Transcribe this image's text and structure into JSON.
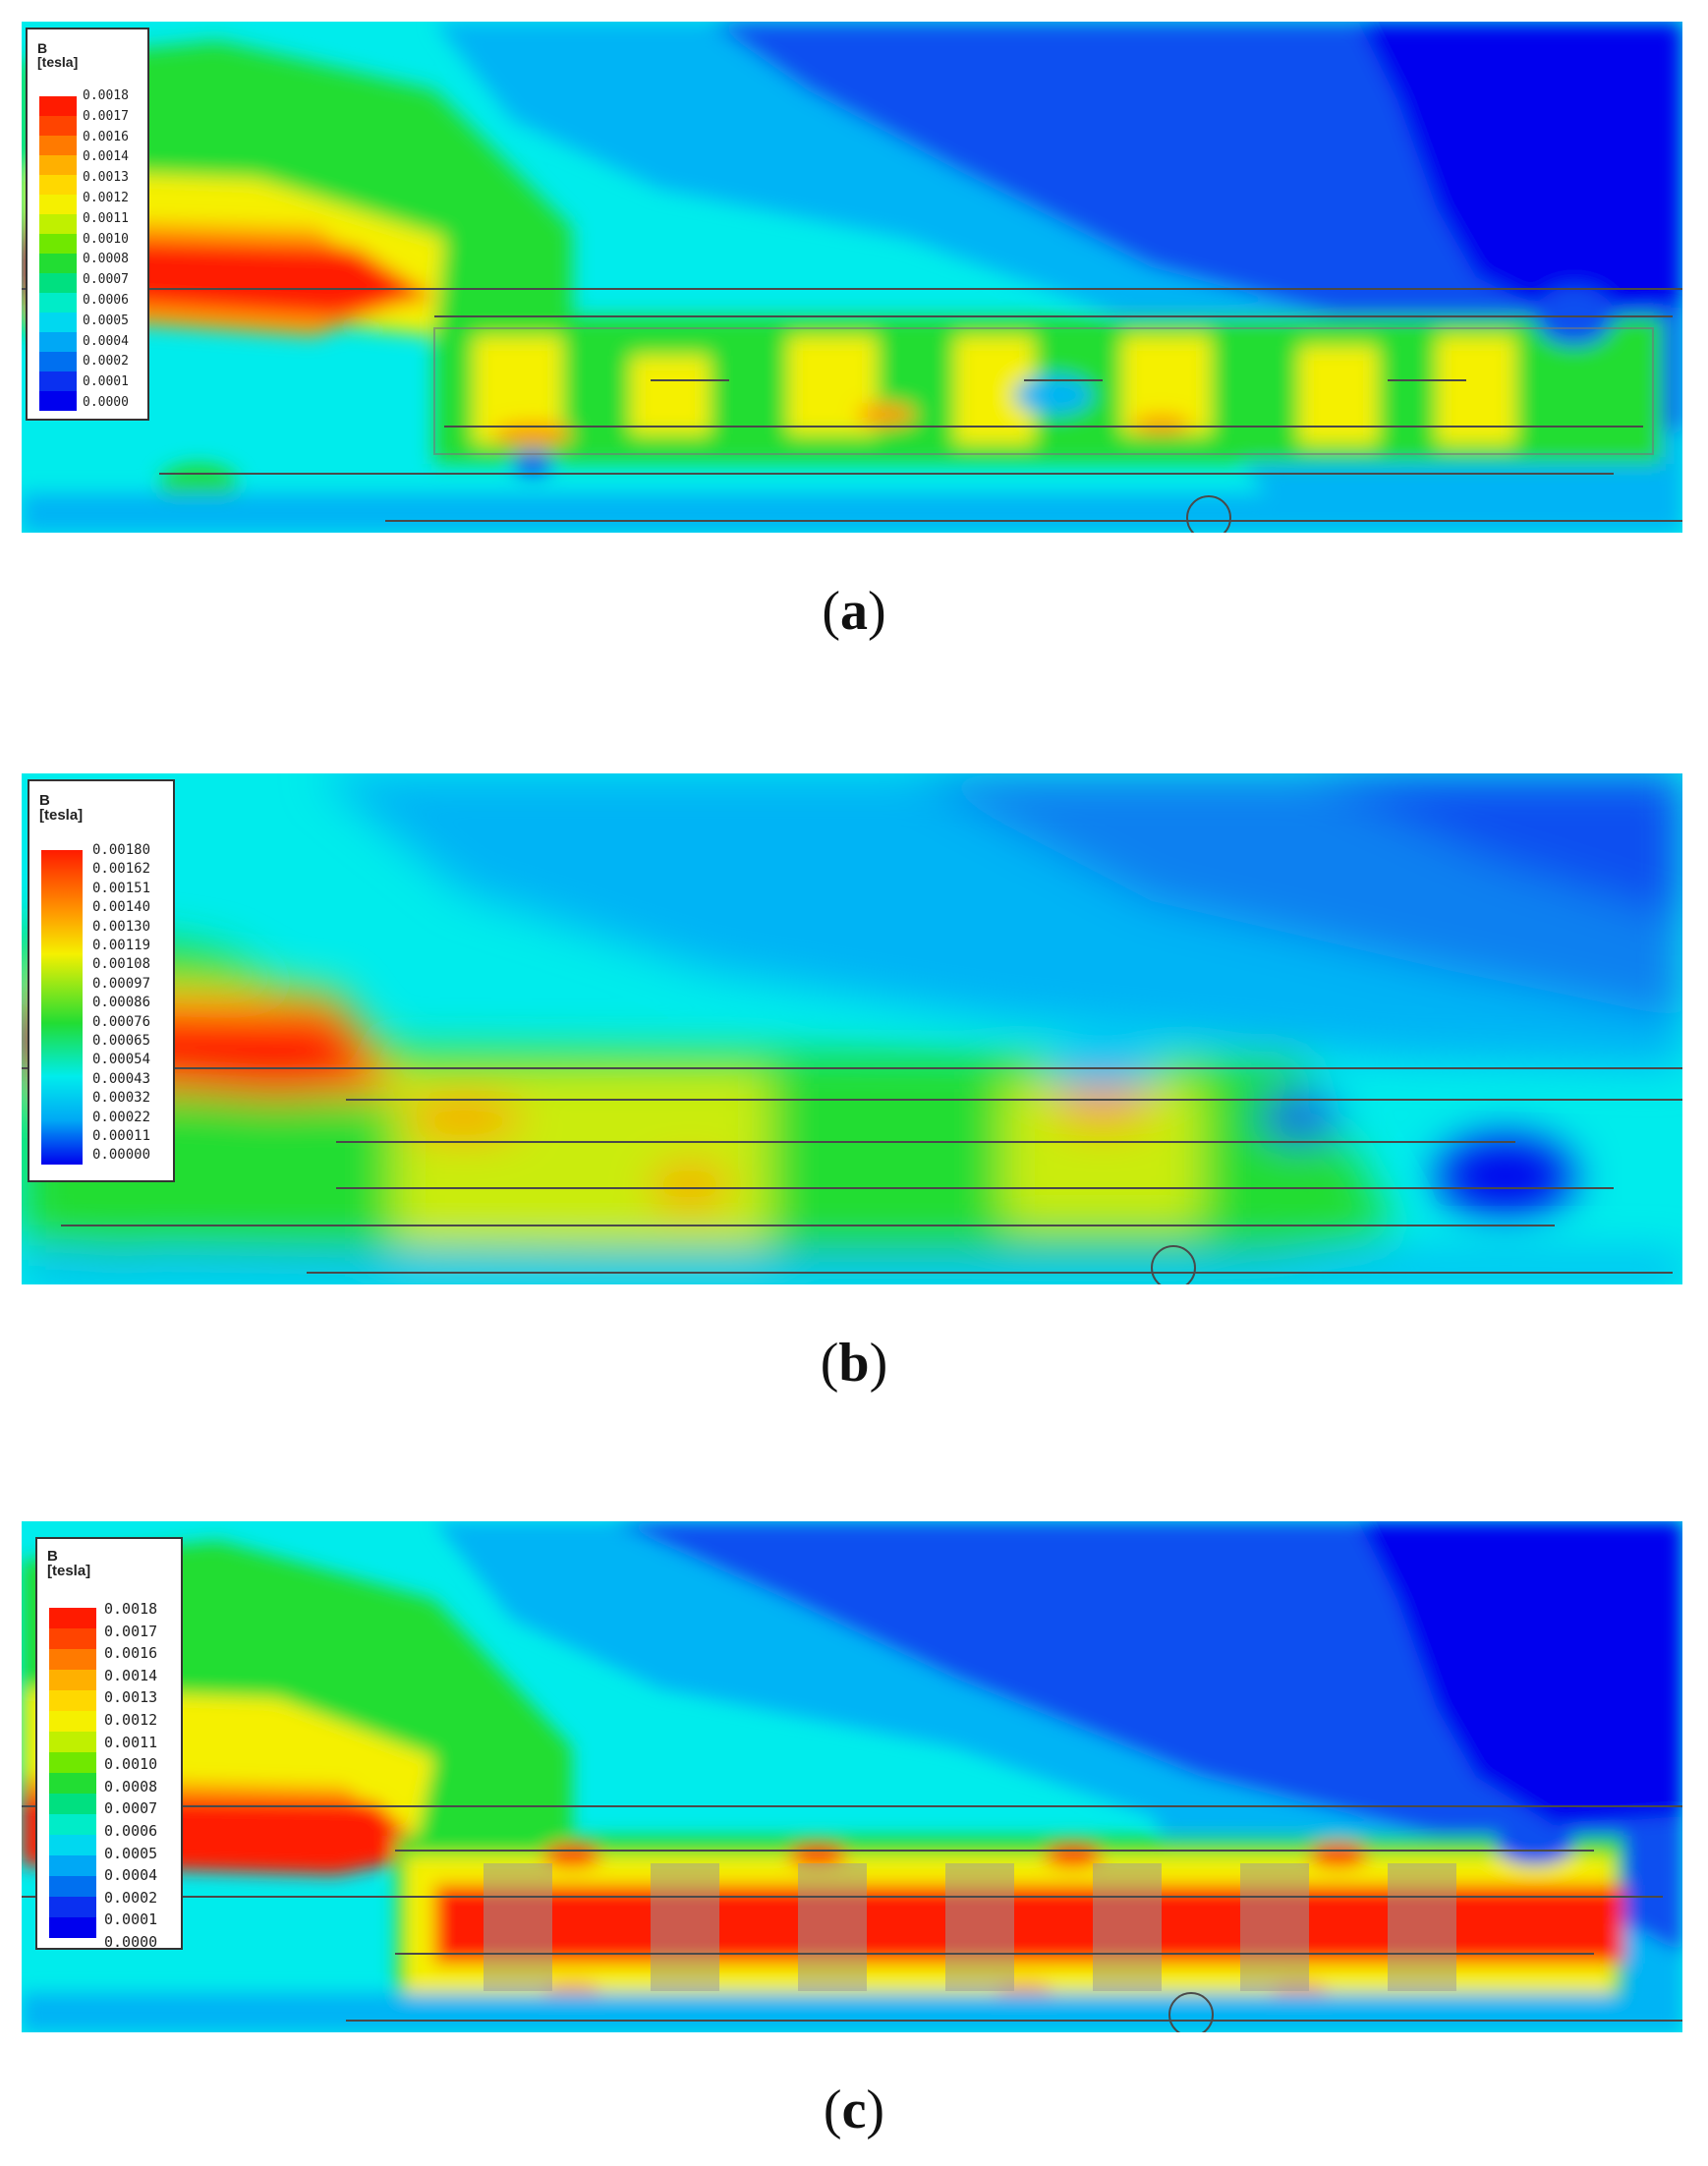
{
  "colors": {
    "dark_blue": "#0000ee",
    "blue": "#0a50f0",
    "light_blue": "#00b4f5",
    "cyan": "#00ecec",
    "green": "#22dd33",
    "yellow": "#f5f000",
    "orange": "#ff9a00",
    "red": "#ff1b00"
  },
  "panels": [
    {
      "id": "a",
      "legend": {
        "title_line1": "B",
        "title_line2": "[tesla]",
        "labels": [
          "0.0018",
          "0.0017",
          "0.0016",
          "0.0014",
          "0.0013",
          "0.0012",
          "0.0011",
          "0.0010",
          "0.0008",
          "0.0007",
          "0.0006",
          "0.0005",
          "0.0004",
          "0.0002",
          "0.0001",
          "0.0000"
        ]
      },
      "caption": {
        "open": "(",
        "letter": "a",
        "close": ")"
      }
    },
    {
      "id": "b",
      "legend": {
        "title_line1": "B",
        "title_line2": "[tesla]",
        "labels": [
          "0.00180",
          "0.00162",
          "0.00151",
          "0.00140",
          "0.00130",
          "0.00119",
          "0.00108",
          "0.00097",
          "0.00086",
          "0.00076",
          "0.00065",
          "0.00054",
          "0.00043",
          "0.00032",
          "0.00022",
          "0.00011",
          "0.00000"
        ]
      },
      "caption": {
        "open": "(",
        "letter": "b",
        "close": ")"
      }
    },
    {
      "id": "c",
      "legend": {
        "title_line1": "B",
        "title_line2": "[tesla]",
        "labels": [
          "0.0018",
          "0.0017",
          "0.0016",
          "0.0014",
          "0.0013",
          "0.0012",
          "0.0011",
          "0.0010",
          "0.0008",
          "0.0007",
          "0.0006",
          "0.0005",
          "0.0004",
          "0.0002",
          "0.0001",
          "0.0000"
        ]
      },
      "caption": {
        "open": "(",
        "letter": "c",
        "close": ")"
      }
    }
  ]
}
